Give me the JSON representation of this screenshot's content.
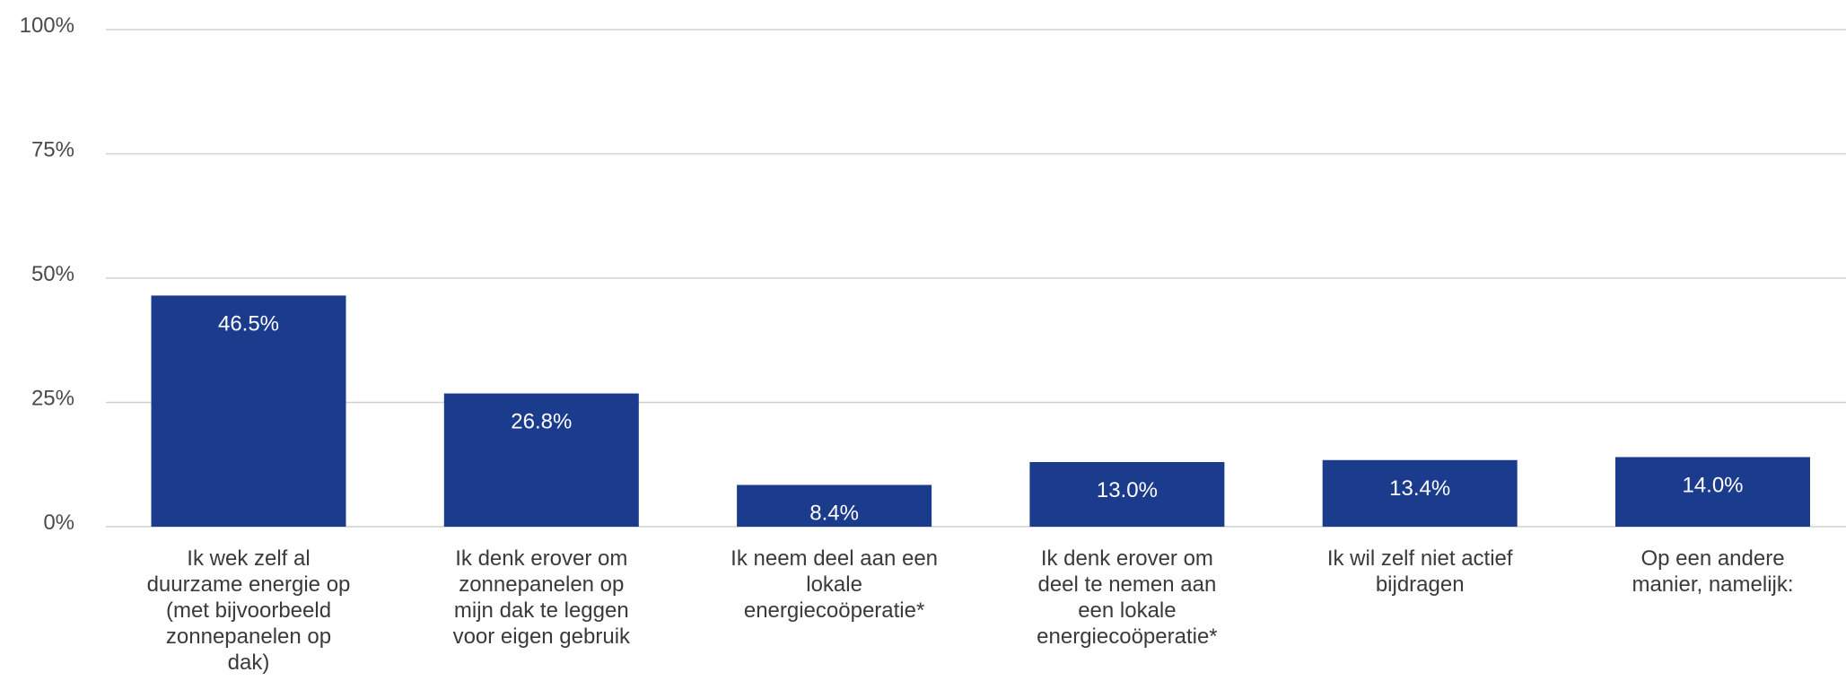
{
  "chart_data": {
    "type": "bar",
    "title": "",
    "xlabel": "",
    "ylabel": "",
    "ylim": [
      0,
      100
    ],
    "yticks": [
      "0%",
      "25%",
      "50%",
      "75%",
      "100%"
    ],
    "ytick_values": [
      0,
      25,
      50,
      75,
      100
    ],
    "grid": true,
    "bar_color": "#1b3c8c",
    "categories": [
      [
        "Ik wek zelf al",
        "duurzame energie op",
        "(met bijvoorbeeld",
        "zonnepanelen op",
        "dak)"
      ],
      [
        "Ik denk erover om",
        "zonnepanelen op",
        "mijn dak te leggen",
        "voor eigen gebruik"
      ],
      [
        "Ik neem deel aan een",
        "lokale",
        "energiecoöperatie*"
      ],
      [
        "Ik denk erover om",
        "deel te nemen aan",
        "een lokale",
        "energiecoöperatie*"
      ],
      [
        "Ik wil zelf niet actief",
        "bijdragen"
      ],
      [
        "Op een andere",
        "manier, namelijk:"
      ]
    ],
    "values": [
      46.5,
      26.8,
      8.4,
      13.0,
      13.4,
      14.0
    ],
    "value_labels": [
      "46.5%",
      "26.8%",
      "8.4%",
      "13.0%",
      "13.4%",
      "14.0%"
    ]
  }
}
